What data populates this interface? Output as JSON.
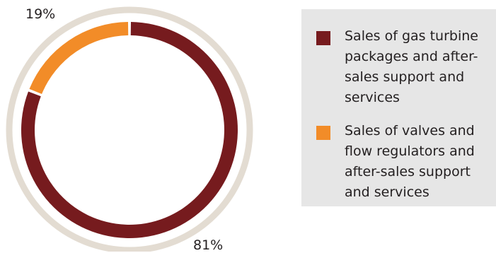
{
  "chart_data": {
    "type": "pie",
    "donut": true,
    "legend_position": "right",
    "series": [
      {
        "name": "Sales of gas turbine packages and after-sales support and services",
        "value": 81,
        "label": "81%",
        "color": "#761b1e"
      },
      {
        "name": "Sales of valves and flow regulators and after-sales support and services",
        "value": 19,
        "label": "19%",
        "color": "#f28c28"
      }
    ],
    "outer_ring_color": "#e3dcd2"
  }
}
